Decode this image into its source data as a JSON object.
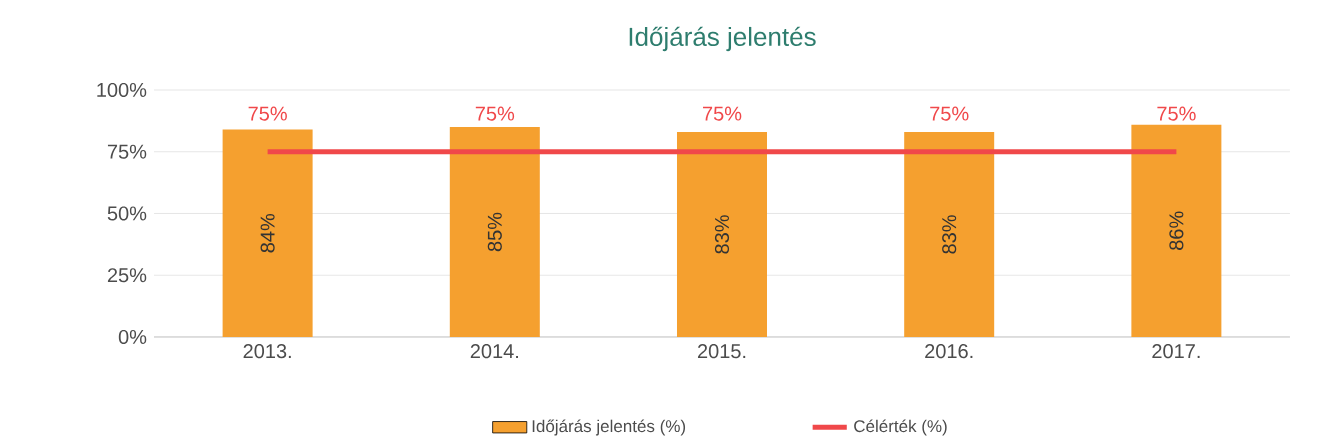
{
  "chart_data": {
    "type": "bar",
    "title": "Időjárás jelentés",
    "categories": [
      "2013.",
      "2014.",
      "2015.",
      "2016.",
      "2017."
    ],
    "series": [
      {
        "name": "Időjárás jelentés (%)",
        "color": "#f5a02f",
        "values": [
          84,
          85,
          83,
          83,
          86
        ],
        "value_labels": [
          "84%",
          "85%",
          "83%",
          "83%",
          "86%"
        ]
      },
      {
        "name": "Célérték (%)",
        "type": "line",
        "color": "#f0484a",
        "values": [
          75,
          75,
          75,
          75,
          75
        ],
        "value_labels": [
          "75%",
          "75%",
          "75%",
          "75%",
          "75%"
        ]
      }
    ],
    "ylim": [
      0,
      100
    ],
    "yticks": [
      {
        "value": 0,
        "label": "0%"
      },
      {
        "value": 25,
        "label": "25%"
      },
      {
        "value": 50,
        "label": "50%"
      },
      {
        "value": 75,
        "label": "75%"
      },
      {
        "value": 100,
        "label": "100%"
      }
    ],
    "grid": "y",
    "legend": "bottom"
  }
}
